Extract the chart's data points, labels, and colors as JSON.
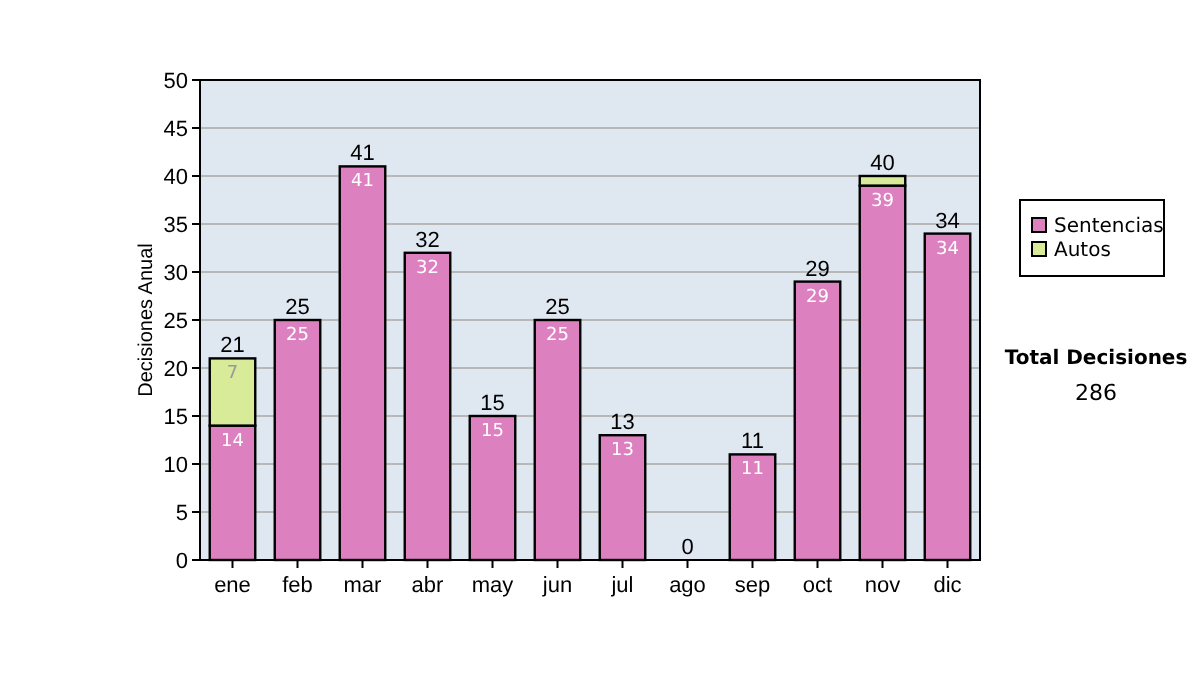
{
  "chart_data": {
    "type": "bar",
    "stacked": true,
    "ylabel": "Decisiones Anual",
    "categories": [
      "ene",
      "feb",
      "mar",
      "abr",
      "may",
      "jun",
      "jul",
      "ago",
      "sep",
      "oct",
      "nov",
      "dic"
    ],
    "series": [
      {
        "name": "Sentencias",
        "color": "#dd80c0",
        "values": [
          14,
          25,
          41,
          32,
          15,
          25,
          13,
          0,
          11,
          29,
          39,
          34
        ],
        "value_labels": [
          "14",
          "25",
          "41",
          "32",
          "15",
          "25",
          "13",
          null,
          "11",
          "29",
          "39",
          "34"
        ]
      },
      {
        "name": "Autos",
        "color": "#d8eb98",
        "values": [
          7,
          0,
          0,
          0,
          0,
          0,
          0,
          0,
          0,
          0,
          1,
          0
        ],
        "value_labels": [
          "7",
          null,
          null,
          null,
          null,
          null,
          null,
          null,
          null,
          null,
          null,
          null
        ]
      }
    ],
    "totals": [
      "21",
      "25",
      "41",
      "32",
      "15",
      "25",
      "13",
      "0",
      "11",
      "29",
      "40",
      "34"
    ],
    "ylim": [
      0,
      50
    ],
    "yticks": [
      0,
      5,
      10,
      15,
      20,
      25,
      30,
      35,
      40,
      45,
      50
    ],
    "grid": "y",
    "legend": "right",
    "annotations": [
      "Total Decisiones",
      "286"
    ]
  }
}
